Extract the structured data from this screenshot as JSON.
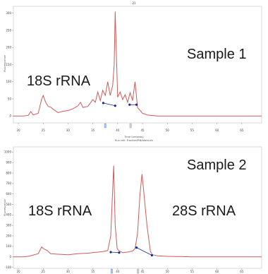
{
  "chart_data": [
    {
      "type": "line",
      "panel": "top",
      "title": "",
      "header_mark": "21",
      "xlabel": "Time (seconds)",
      "xlabel_sub": "Run cell: Fraction/RNAdata.xls",
      "ylabel": "Fluorescence",
      "xlim": [
        19,
        69
      ],
      "ylim": [
        -20,
        320
      ],
      "x_ticks": [
        20,
        25,
        30,
        35,
        40,
        45,
        50,
        55,
        60,
        65
      ],
      "y_ticks": [
        0,
        50,
        100,
        150,
        200,
        250,
        300
      ],
      "color": "#d05a5a",
      "annotations": [
        "Sample 1",
        "18S rRNA"
      ],
      "series": [
        {
          "x": [
            19,
            21,
            22,
            22.5,
            23,
            24,
            24.7,
            25,
            25.5,
            26,
            26.5,
            27,
            28,
            29,
            30,
            31,
            32,
            32.5,
            33,
            34,
            35,
            35.5,
            36,
            36.5,
            37,
            37.5,
            38,
            38.5,
            39,
            39.3,
            39.5,
            39.8,
            40,
            40.5,
            41,
            41.5,
            42,
            42.5,
            43,
            43.5,
            44,
            45,
            46,
            48,
            52,
            56,
            60,
            64,
            69
          ],
          "y": [
            0,
            0,
            2,
            13,
            3,
            8,
            50,
            60,
            40,
            28,
            26,
            20,
            10,
            14,
            16,
            21,
            30,
            40,
            25,
            28,
            48,
            40,
            70,
            45,
            75,
            60,
            100,
            60,
            90,
            150,
            305,
            150,
            55,
            70,
            48,
            62,
            40,
            68,
            45,
            100,
            25,
            8,
            3,
            0,
            0,
            0,
            0,
            0,
            0
          ]
        }
      ],
      "markers": {
        "x": [
          37.1,
          39.5,
          42.4,
          43.8
        ],
        "y": [
          38,
          30,
          33,
          33
        ],
        "color": "#1a2a8c"
      },
      "baseline_markers": [
        37.5,
        42.6
      ]
    },
    {
      "type": "line",
      "panel": "bottom",
      "title": "",
      "xlabel": "",
      "ylabel": "Fluorescence",
      "xlim": [
        19,
        69
      ],
      "ylim": [
        -110,
        1050
      ],
      "x_ticks": [
        20,
        25,
        30,
        35,
        40,
        45,
        50,
        55,
        60,
        65
      ],
      "y_ticks": [
        -100,
        0,
        100,
        200,
        300,
        400,
        500,
        600,
        700,
        800,
        900,
        1000
      ],
      "color": "#d05a5a",
      "annotations": [
        "Sample 2",
        "18S rRNA",
        "28S rRNA"
      ],
      "series": [
        {
          "x": [
            19,
            21,
            22,
            24,
            24.7,
            25,
            25.8,
            26.5,
            28,
            30,
            32,
            34,
            35,
            36,
            37,
            38,
            38.6,
            39.2,
            39.5,
            39.9,
            40.2,
            41,
            42,
            43,
            43.5,
            44,
            44.5,
            44.9,
            45.3,
            45.9,
            46.6,
            47,
            48,
            50,
            55,
            60,
            65,
            69
          ],
          "y": [
            0,
            0,
            5,
            30,
            95,
            80,
            60,
            30,
            25,
            20,
            30,
            35,
            40,
            45,
            50,
            60,
            200,
            870,
            300,
            80,
            60,
            40,
            45,
            55,
            80,
            220,
            600,
            790,
            600,
            300,
            50,
            20,
            10,
            5,
            0,
            0,
            0,
            0
          ]
        }
      ],
      "markers": {
        "x": [
          38.6,
          40.3,
          43.8,
          46.9
        ],
        "y": [
          45,
          40,
          88,
          15
        ],
        "color": "#1a2a8c"
      },
      "baseline_markers": [
        38.8,
        44.1
      ]
    }
  ]
}
